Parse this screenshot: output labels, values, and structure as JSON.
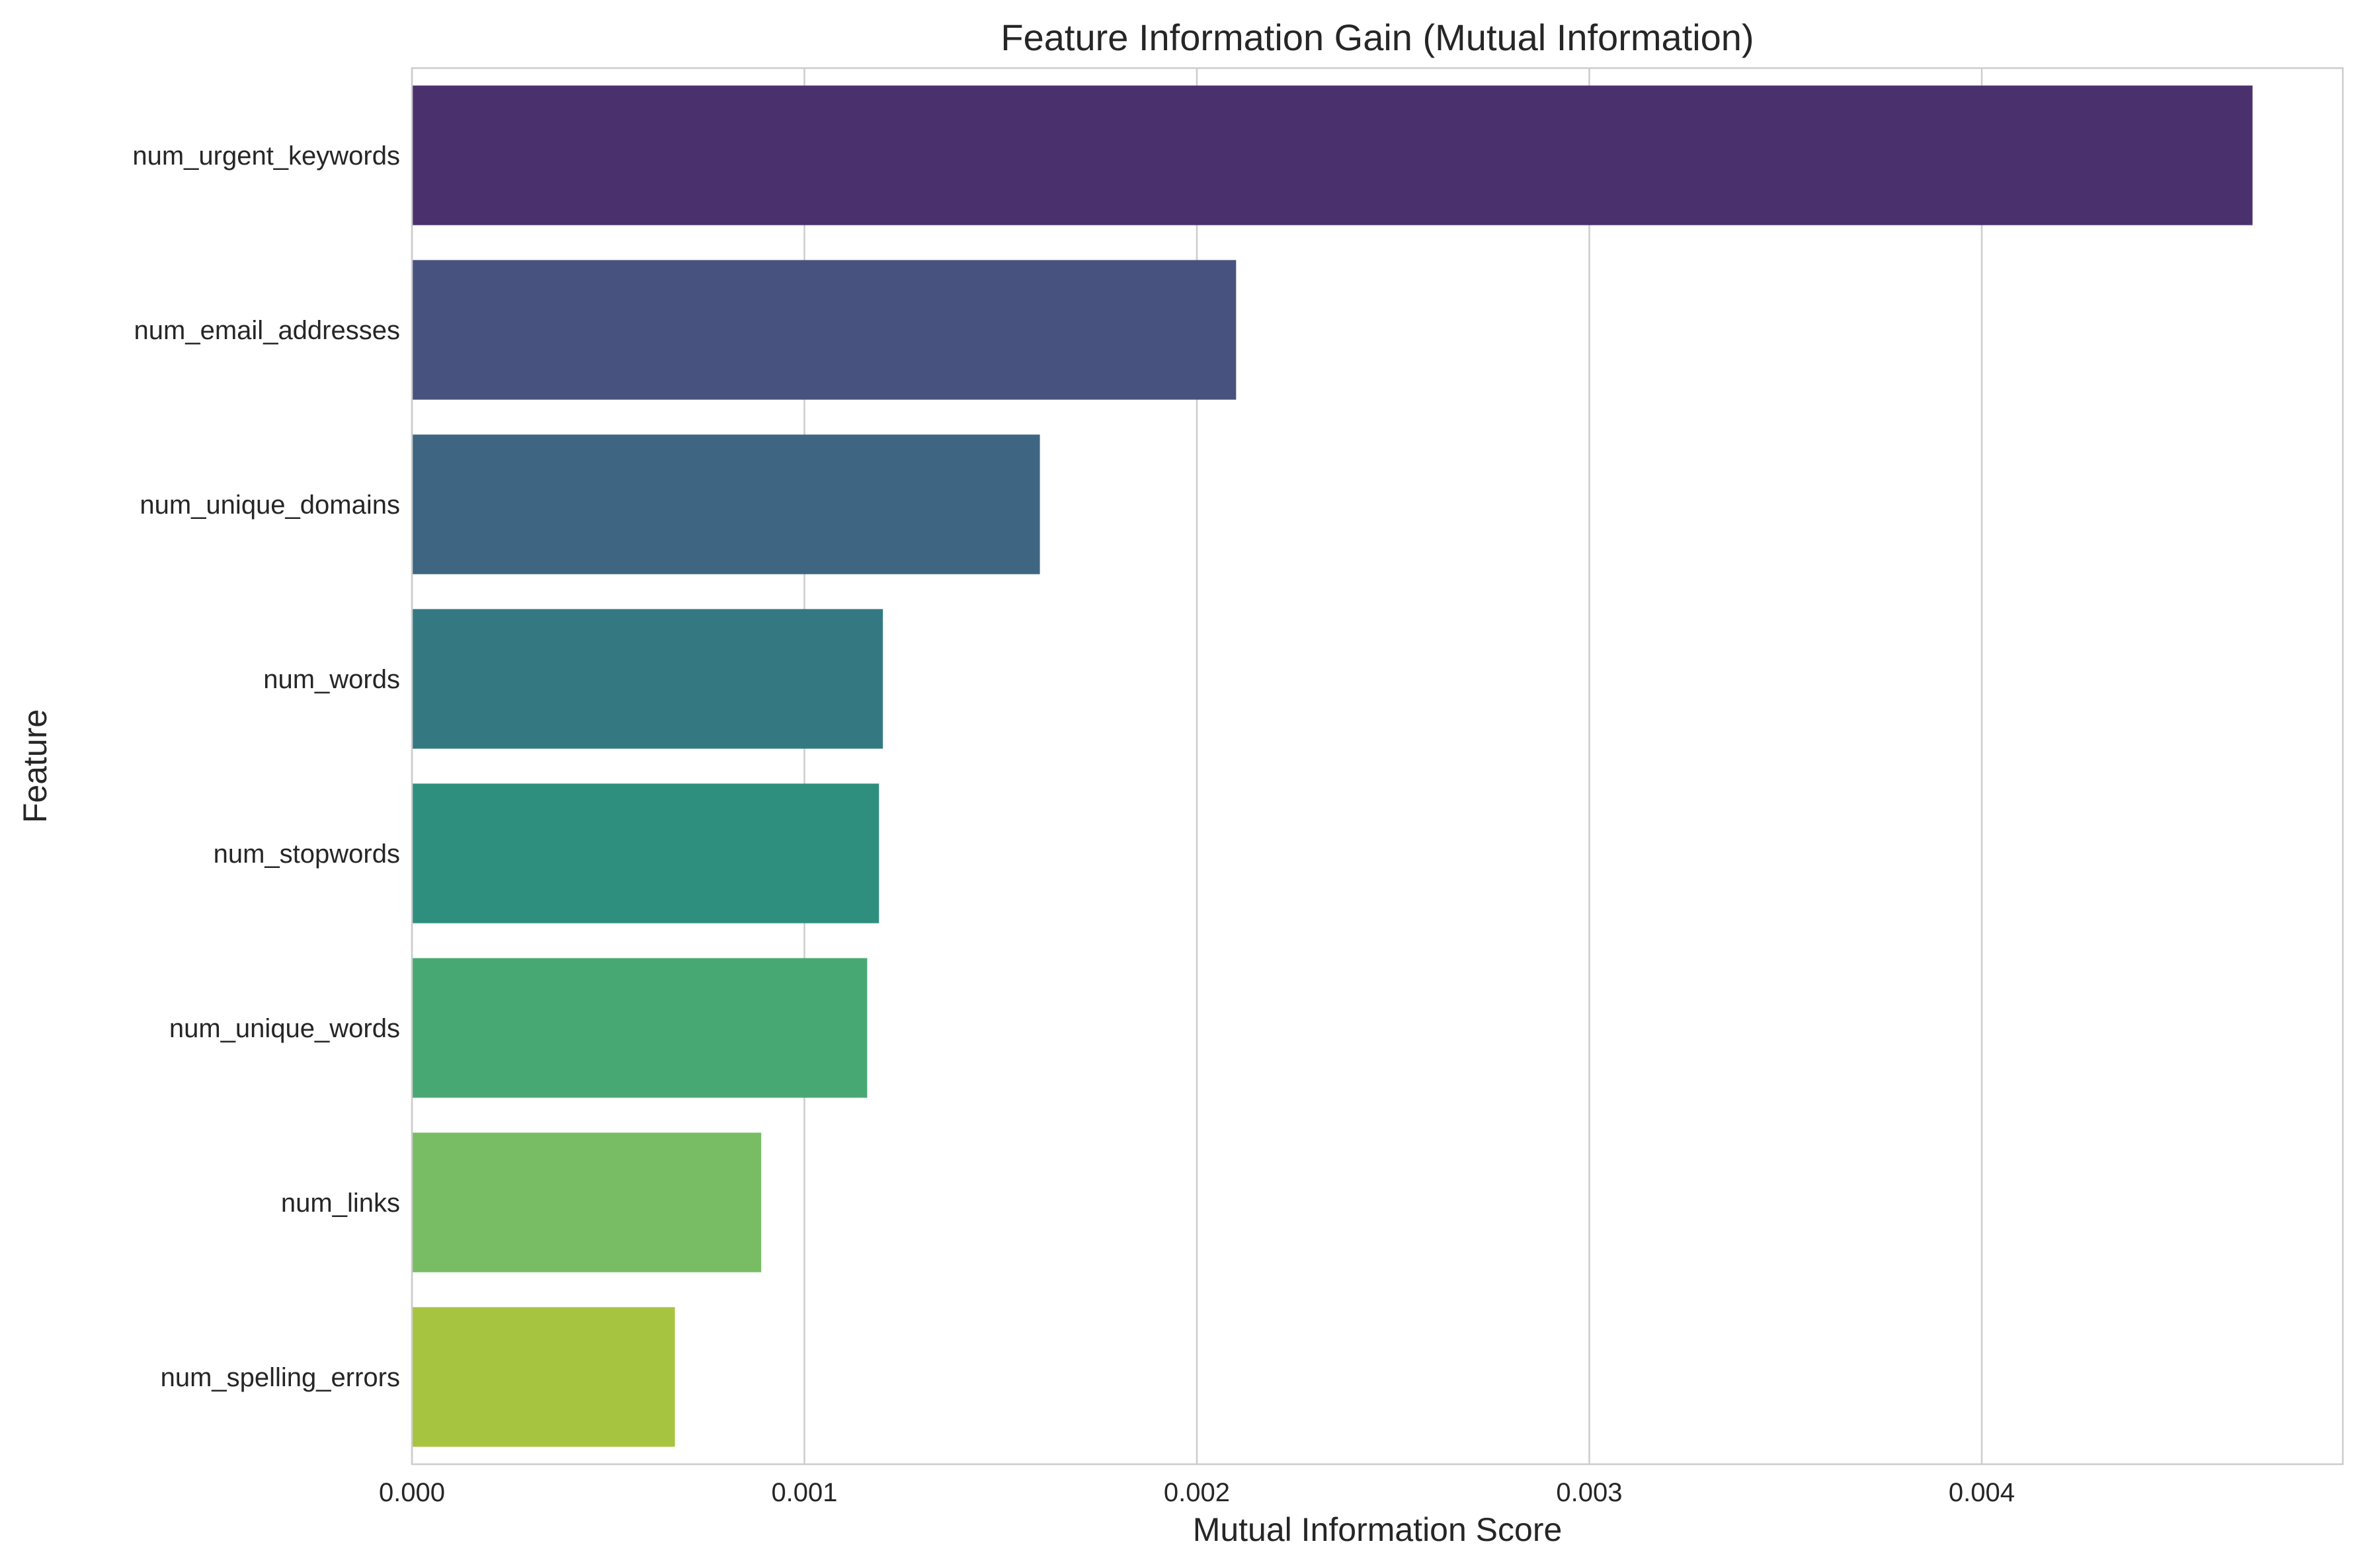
{
  "chart_data": {
    "type": "bar",
    "orientation": "horizontal",
    "title": "Feature Information Gain (Mutual Information)",
    "xlabel": "Mutual Information Score",
    "ylabel": "Feature",
    "categories": [
      "num_urgent_keywords",
      "num_email_addresses",
      "num_unique_domains",
      "num_words",
      "num_stopwords",
      "num_unique_words",
      "num_links",
      "num_spelling_errors"
    ],
    "values": [
      0.00469,
      0.0021,
      0.0016,
      0.0012,
      0.00119,
      0.00116,
      0.00089,
      0.00067
    ],
    "colors": [
      "#4a316e",
      "#47527e",
      "#3e6682",
      "#347982",
      "#2e8f7f",
      "#48a874",
      "#78bd64",
      "#a7c441"
    ],
    "xlim": [
      0,
      0.00492
    ],
    "xticks": [
      0,
      0.001,
      0.002,
      0.003,
      0.004
    ],
    "xtick_labels": [
      "0.000",
      "0.001",
      "0.002",
      "0.003",
      "0.004"
    ],
    "grid": "x-axis only",
    "legend": "none"
  }
}
